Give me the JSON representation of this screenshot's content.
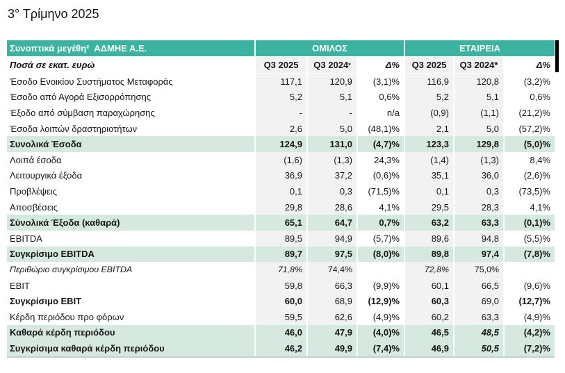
{
  "page_title": "3° Τρίμηνο 2025",
  "colors": {
    "header_teal": "#3CB2A0",
    "total_row_green": "#D6E9E0",
    "value_column_gray": "#F2F2F2",
    "header_text": "#FFFFFF"
  },
  "table": {
    "title_cell": "Συνοπτικά μεγέθη²  ΑΔΜΗΕ Α.Ε.",
    "group_header": "ΟΜΙΛΟΣ",
    "company_header": "ΕΤΑΙΡΕΙΑ",
    "units_label": "Ποσά σε εκατ. ευρώ",
    "subheader_cols": [
      {
        "text": "Q3 2025",
        "bg": "gray",
        "align": "center"
      },
      {
        "text": "Q3 2024",
        "sup": "*",
        "bg": "gray",
        "align": "center"
      },
      {
        "text": "Δ%",
        "bg": "white",
        "align": "right",
        "italic": true
      },
      {
        "text": "Q3 2025",
        "bg": "gray",
        "align": "center"
      },
      {
        "text": "Q3 2024*",
        "bg": "gray",
        "align": "center"
      },
      {
        "text": "Δ%",
        "bg": "white",
        "align": "right",
        "italic": true
      }
    ],
    "rows": [
      {
        "label": "Έσοδο Ενοικίου Συστήματος Μεταφοράς",
        "style": "normal",
        "values": [
          "117,1",
          "120,9",
          "(3,1)%",
          "116,9",
          "120,8",
          "(3,2)%"
        ]
      },
      {
        "label": "Έσοδο από Αγορά Εξισορρόπησης",
        "style": "normal",
        "values": [
          "5,2",
          "5,1",
          "0,6%",
          "5,2",
          "5,1",
          "0,6%"
        ]
      },
      {
        "label": "Έξοδο από σύμβαση παραχώρησης",
        "style": "normal",
        "values": [
          "-",
          "-",
          "n/a",
          "(0,9)",
          "(1,1)",
          "(21,2)%"
        ]
      },
      {
        "label": "Έσοδα λοιπών δραστηριοτήτων",
        "style": "normal",
        "values": [
          "2,6",
          "5,0",
          "(48,1)%",
          "2,1",
          "5,0",
          "(57,2)%"
        ]
      },
      {
        "label": "Συνολικά Έσοδα",
        "style": "total",
        "values": [
          "124,9",
          "131,0",
          "(4,7)%",
          "123,3",
          "129,8",
          "(5,0)%"
        ]
      },
      {
        "label": "Λοιπά έσοδα",
        "style": "normal",
        "values": [
          "(1,6)",
          "(1,3)",
          "24,3%",
          "(1,4)",
          "(1,3)",
          "8,4%"
        ]
      },
      {
        "label": "Λειτουργικά έξοδα",
        "style": "normal",
        "values": [
          "36,9",
          "37,2",
          "(0,6)%",
          "35,1",
          "36,0",
          "(2,6)%"
        ]
      },
      {
        "label": "Προβλέψεις",
        "style": "normal",
        "values": [
          "0,1",
          "0,3",
          "(71,5)%",
          "0,1",
          "0,3",
          "(73,5)%"
        ]
      },
      {
        "label": "Αποσβέσεις",
        "style": "normal",
        "values": [
          "29,8",
          "28,6",
          "4,1%",
          "29,5",
          "28,3",
          "4,1%"
        ]
      },
      {
        "label": "Σύνολικά Έξοδα (καθαρά)",
        "style": "total",
        "values": [
          "65,1",
          "64,7",
          "0,7%",
          "63,2",
          "63,3",
          "(0,1)%"
        ]
      },
      {
        "label": "EBITDA",
        "style": "normal",
        "values": [
          "89,5",
          "94,9",
          "(5,7)%",
          "89,6",
          "94,8",
          "(5,5)%"
        ]
      },
      {
        "label": "Συγκρίσιμο EBITDA",
        "style": "total",
        "values": [
          "89,7",
          "97,5",
          "(8,0)%",
          "89,8",
          "97,4",
          "(7,8)%"
        ]
      },
      {
        "label": "Περιθώριο συγκρίσιμου EBITDA",
        "style": "margin-row",
        "values": [
          "71,8%",
          "74,4%",
          "",
          "72,8%",
          "75,0%",
          ""
        ],
        "italic_cells": [
          0,
          3
        ]
      },
      {
        "label": "EBIT",
        "style": "normal",
        "values": [
          "59,8",
          "66,3",
          "(9,9)%",
          "60,1",
          "66,5",
          "(9,6)%"
        ]
      },
      {
        "label": "Συγκρίσιμο EBIT",
        "style": "emphasis",
        "values": [
          "60,0",
          "68,9",
          "(12,9)%",
          "60,3",
          "69,0",
          "(12,7)%"
        ],
        "bold_cells": [
          0,
          2,
          3,
          5
        ]
      },
      {
        "label": "Κέρδη περιόδου προ φόρων",
        "style": "normal",
        "values": [
          "59,5",
          "62,6",
          "(4,9)%",
          "60,2",
          "63,3",
          "(4,9)%"
        ]
      },
      {
        "label": "Καθαρά κέρδη περιόδου",
        "style": "total",
        "values": [
          "46,0",
          "47,9",
          "(4,0)%",
          "46,5",
          "48,5",
          "(4,2)%"
        ],
        "italic_cells": [
          4
        ]
      },
      {
        "label": "Συγκρίσιμα καθαρά κέρδη περιόδου",
        "style": "total",
        "values": [
          "46,2",
          "49,9",
          "(7,4)%",
          "46,9",
          "50,5",
          "(7,2)%"
        ],
        "italic_cells": [
          4
        ]
      }
    ]
  }
}
